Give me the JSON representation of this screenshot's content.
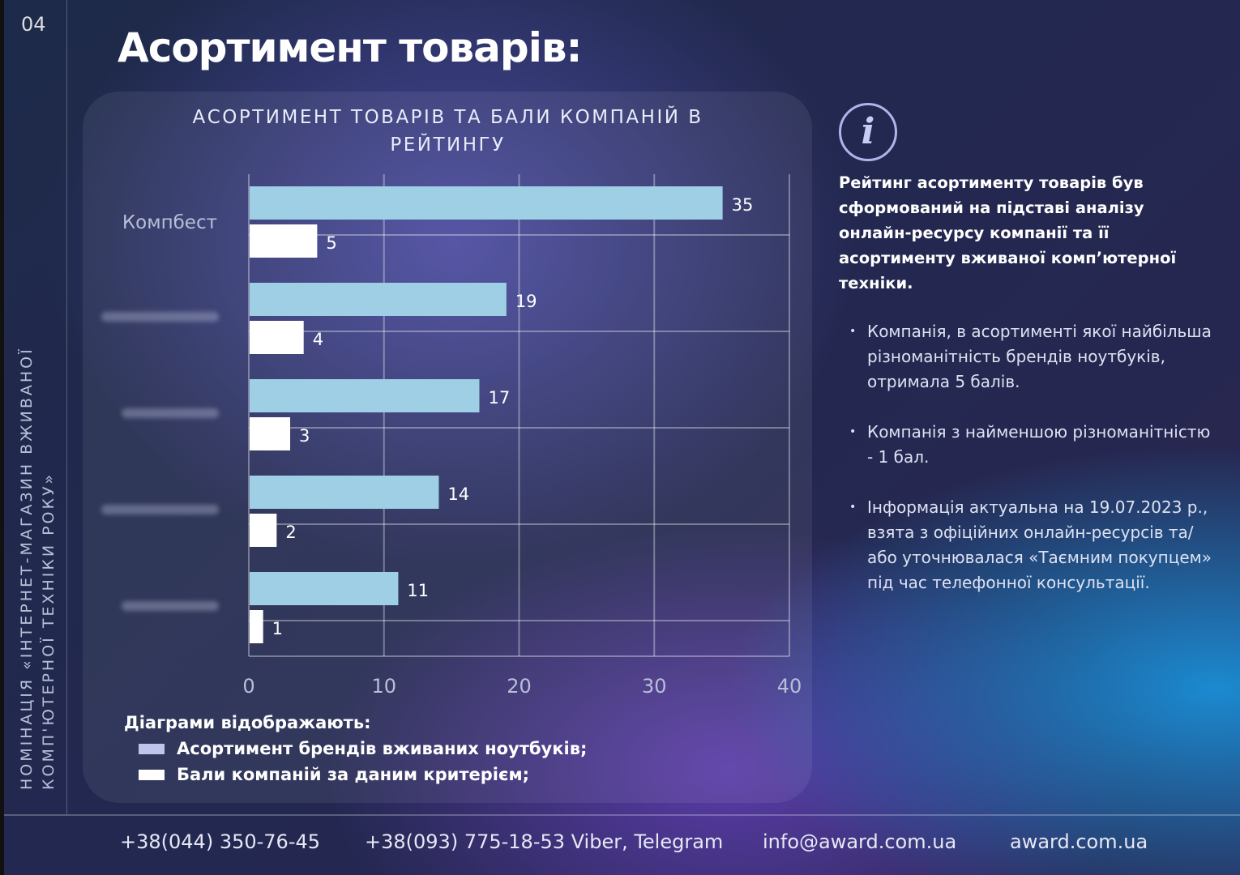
{
  "page_number": "04",
  "side_text": [
    "НОМІНАЦІЯ «ІНТЕРНЕТ-МАГАЗИН ВЖИВАНОЇ",
    "КОМП'ЮТЕРНОЇ ТЕХНІКИ РОКУ»"
  ],
  "title": "Асортимент товарів:",
  "chart_data": {
    "type": "bar",
    "orientation": "horizontal",
    "title": "АСОРТИМЕНТ ТОВАРІВ ТА БАЛИ КОМПАНІЙ В РЕЙТИНГУ",
    "categories": [
      "Компбест",
      "",
      "",
      "",
      ""
    ],
    "series": [
      {
        "name": "Асортимент брендів вживаних ноутбуків;",
        "values": [
          35,
          19,
          17,
          14,
          11
        ],
        "color": "#9ecfe4"
      },
      {
        "name": "Бали компаній за даним критерієм;",
        "values": [
          5,
          4,
          3,
          2,
          1
        ],
        "color": "#ffffff"
      }
    ],
    "xlim": [
      0,
      40
    ],
    "xticks": [
      0,
      10,
      20,
      30,
      40
    ],
    "grid": true,
    "legend_title": "Діаграми відображають:",
    "legend_placement": "bottom-left",
    "legend_swatch_colors": [
      "#c0c4ec",
      "#ffffff"
    ]
  },
  "info": {
    "heading": "Рейтинг асортименту товарів був сформований на підставі аналізу онлайн-ресурсу компанії та її асортименту вживаної комп’ютерної техніки.",
    "bullets": [
      "Компанія, в асортименті якої найбільша різноманітність брендів ноутбуків, отримала 5 балів.",
      "Компанія з найменшою різноманітністю - 1 бал.",
      "Інформація актуальна на 19.07.2023 р., взята з офіційних онлайн-ресурсів та/або уточнювалася «Таємним покупцем» під час телефонної консультації."
    ]
  },
  "footer": {
    "phone1": "+38(044) 350-76-45",
    "phone2": "+38(093) 775-18-53 Viber, Telegram",
    "email": "info@award.com.ua",
    "site": "award.com.ua"
  }
}
